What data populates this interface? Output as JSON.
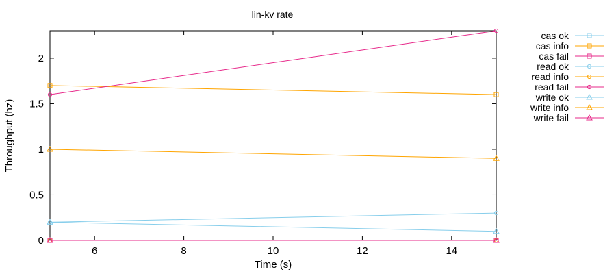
{
  "chart_data": {
    "type": "line",
    "title": "lin-kv rate",
    "xlabel": "Time (s)",
    "ylabel": "Throughput (hz)",
    "xlim": [
      5,
      15
    ],
    "ylim": [
      0,
      2.3
    ],
    "xticks": [
      6,
      8,
      10,
      12,
      14
    ],
    "xtick_labels": [
      "6",
      "8",
      "10",
      "12",
      "14"
    ],
    "yticks": [
      0,
      0.5,
      1,
      1.5,
      2
    ],
    "ytick_labels": [
      "0",
      "0.5",
      "1",
      "1.5",
      "2"
    ],
    "grid": false,
    "legend_position": "outside-right",
    "series": [
      {
        "name": "cas ok",
        "color": "#87CEEB",
        "marker": "square",
        "x": [
          5,
          15
        ],
        "y": [
          0,
          0
        ]
      },
      {
        "name": "cas info",
        "color": "#FFA500",
        "marker": "square",
        "x": [
          5,
          15
        ],
        "y": [
          1.7,
          1.6
        ]
      },
      {
        "name": "cas fail",
        "color": "#E7298A",
        "marker": "square",
        "x": [
          5,
          15
        ],
        "y": [
          0,
          0
        ]
      },
      {
        "name": "read ok",
        "color": "#87CEEB",
        "marker": "circle",
        "x": [
          5,
          15
        ],
        "y": [
          0.2,
          0.3
        ]
      },
      {
        "name": "read info",
        "color": "#FFA500",
        "marker": "circle",
        "x": [
          5,
          15
        ],
        "y": [
          0,
          0
        ]
      },
      {
        "name": "read fail",
        "color": "#E7298A",
        "marker": "circle",
        "x": [
          5,
          15
        ],
        "y": [
          1.6,
          2.3
        ]
      },
      {
        "name": "write ok",
        "color": "#87CEEB",
        "marker": "triangle",
        "x": [
          5,
          15
        ],
        "y": [
          0.2,
          0.1
        ]
      },
      {
        "name": "write info",
        "color": "#FFA500",
        "marker": "triangle",
        "x": [
          5,
          15
        ],
        "y": [
          1.0,
          0.9
        ]
      },
      {
        "name": "write fail",
        "color": "#E7298A",
        "marker": "triangle",
        "x": [
          5,
          15
        ],
        "y": [
          0,
          0
        ]
      }
    ]
  }
}
